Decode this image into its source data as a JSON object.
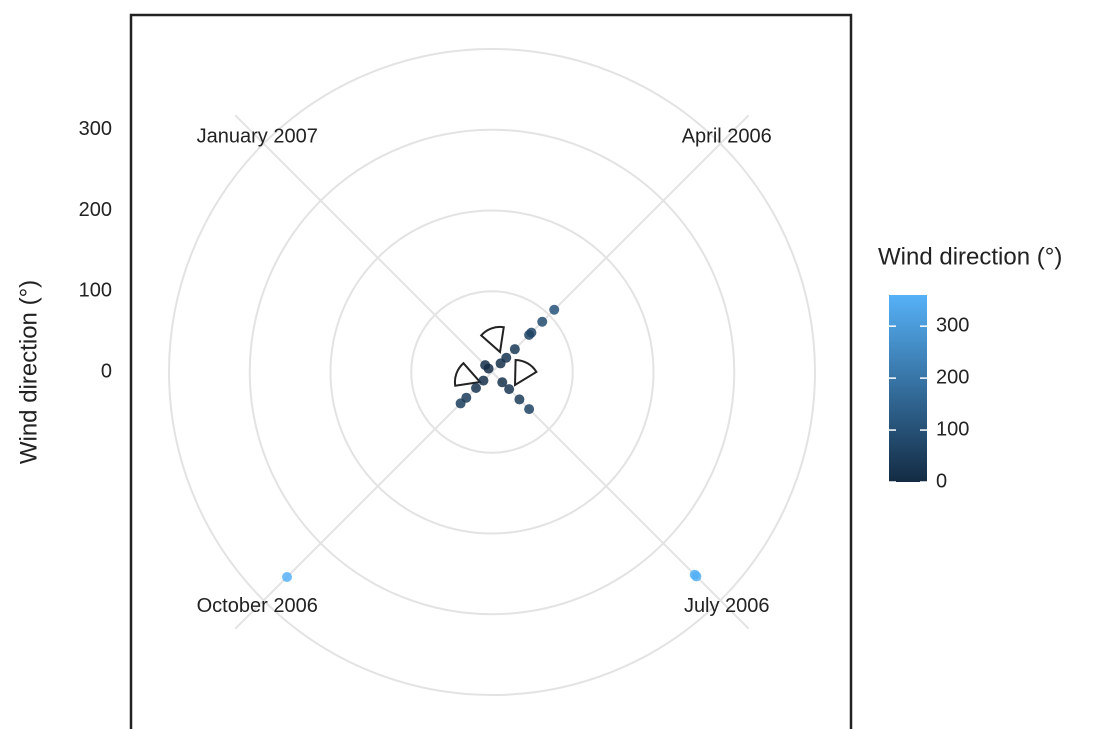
{
  "chart_data": {
    "type": "polar-scatter",
    "x_title": null,
    "y_title": "Wind direction (°)",
    "categories": [
      "April 2006",
      "July 2006",
      "October 2006",
      "January 2007"
    ],
    "x": [
      "April 2006",
      "April 2006",
      "April 2006",
      "April 2006",
      "April 2006",
      "April 2006",
      "April 2006",
      "July 2006",
      "July 2006",
      "July 2006",
      "July 2006",
      "July 2006",
      "July 2006",
      "October 2006",
      "October 2006",
      "October 2006",
      "October 2006",
      "October 2006",
      "January 2007",
      "January 2007"
    ],
    "values": [
      109,
      88,
      69,
      65,
      40,
      25,
      15,
      355,
      358,
      65,
      48,
      30,
      18,
      359,
      55,
      45,
      28,
      15,
      12,
      6
    ],
    "ylim": [
      0,
      400
    ],
    "yticks": [
      0,
      100,
      200,
      300
    ],
    "grid": true,
    "legend": {
      "title": "Wind direction (°)",
      "range": [
        0,
        360
      ],
      "ticks": [
        0,
        100,
        200,
        300
      ],
      "low_color": "#132B43",
      "high_color": "#56B1F7"
    }
  }
}
